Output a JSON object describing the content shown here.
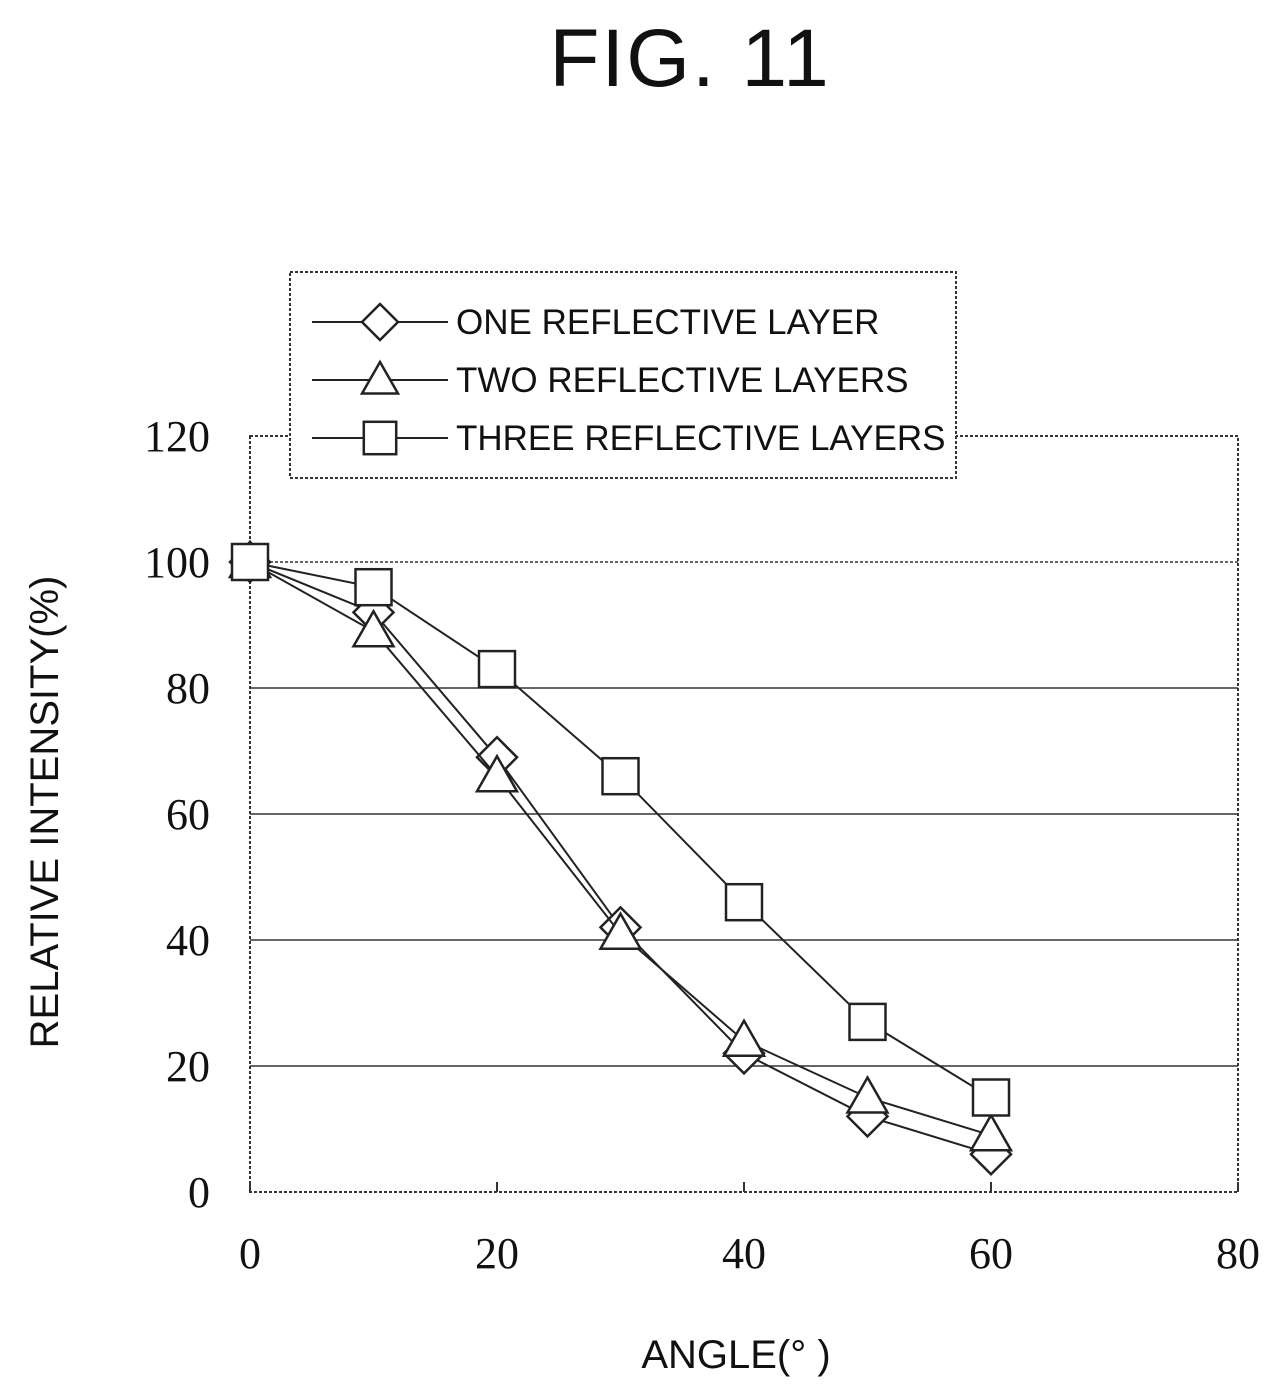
{
  "figure_label": "FIG. 11",
  "chart_data": {
    "type": "line",
    "xlabel": "ANGLE(° )",
    "ylabel": "RELATIVE INTENSITY(%)",
    "xlim": [
      0,
      80
    ],
    "ylim": [
      0,
      120
    ],
    "x_ticks": [
      0,
      20,
      40,
      60,
      80
    ],
    "y_ticks": [
      0,
      20,
      40,
      60,
      80,
      100,
      120
    ],
    "x_tick_labels": [
      "0",
      "20",
      "40",
      "60",
      "80"
    ],
    "y_tick_labels": [
      "0",
      "20",
      "40",
      "60",
      "80",
      "100",
      "120"
    ],
    "grid": "horizontal",
    "legend_position": "top-left",
    "x": [
      0,
      10,
      20,
      30,
      40,
      50,
      60
    ],
    "series": [
      {
        "name": "ONE REFLECTIVE LAYER",
        "marker": "diamond",
        "values": [
          100,
          92,
          69,
          42,
          22,
          12,
          6
        ]
      },
      {
        "name": "TWO REFLECTIVE LAYERS",
        "marker": "triangle",
        "values": [
          100,
          89,
          66,
          41,
          24,
          15,
          9
        ]
      },
      {
        "name": "THREE REFLECTIVE LAYERS",
        "marker": "square",
        "values": [
          100,
          96,
          83,
          66,
          46,
          27,
          15
        ]
      }
    ]
  }
}
